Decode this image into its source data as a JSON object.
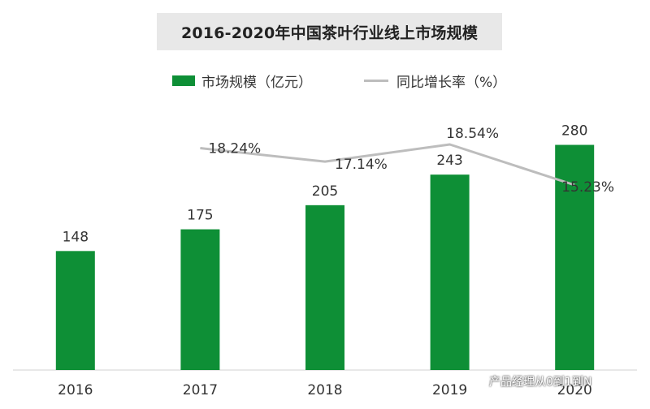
{
  "chart_data": {
    "type": "bar",
    "title": "2016-2020年中国茶叶行业线上市场规模",
    "categories": [
      "2016",
      "2017",
      "2018",
      "2019",
      "2020"
    ],
    "series": [
      {
        "name": "市场规模（亿元）",
        "kind": "bar",
        "color": "#0e8f36",
        "values": [
          148,
          175,
          205,
          243,
          280
        ],
        "labels": [
          "148",
          "175",
          "205",
          "243",
          "280"
        ]
      },
      {
        "name": "同比增长率（%）",
        "kind": "line",
        "color": "#bdbdbd",
        "values": [
          null,
          18.24,
          17.14,
          18.54,
          15.23
        ],
        "labels": [
          "",
          "18.24%",
          "17.14%",
          "18.54%",
          "15.23%"
        ]
      }
    ],
    "ylim": [
      0,
      320
    ],
    "y2lim": [
      0,
      25
    ],
    "legend_position": "top",
    "grid": false
  },
  "watermark": {
    "text": "产品经理从0到1到N",
    "icon": "wechat-icon"
  }
}
